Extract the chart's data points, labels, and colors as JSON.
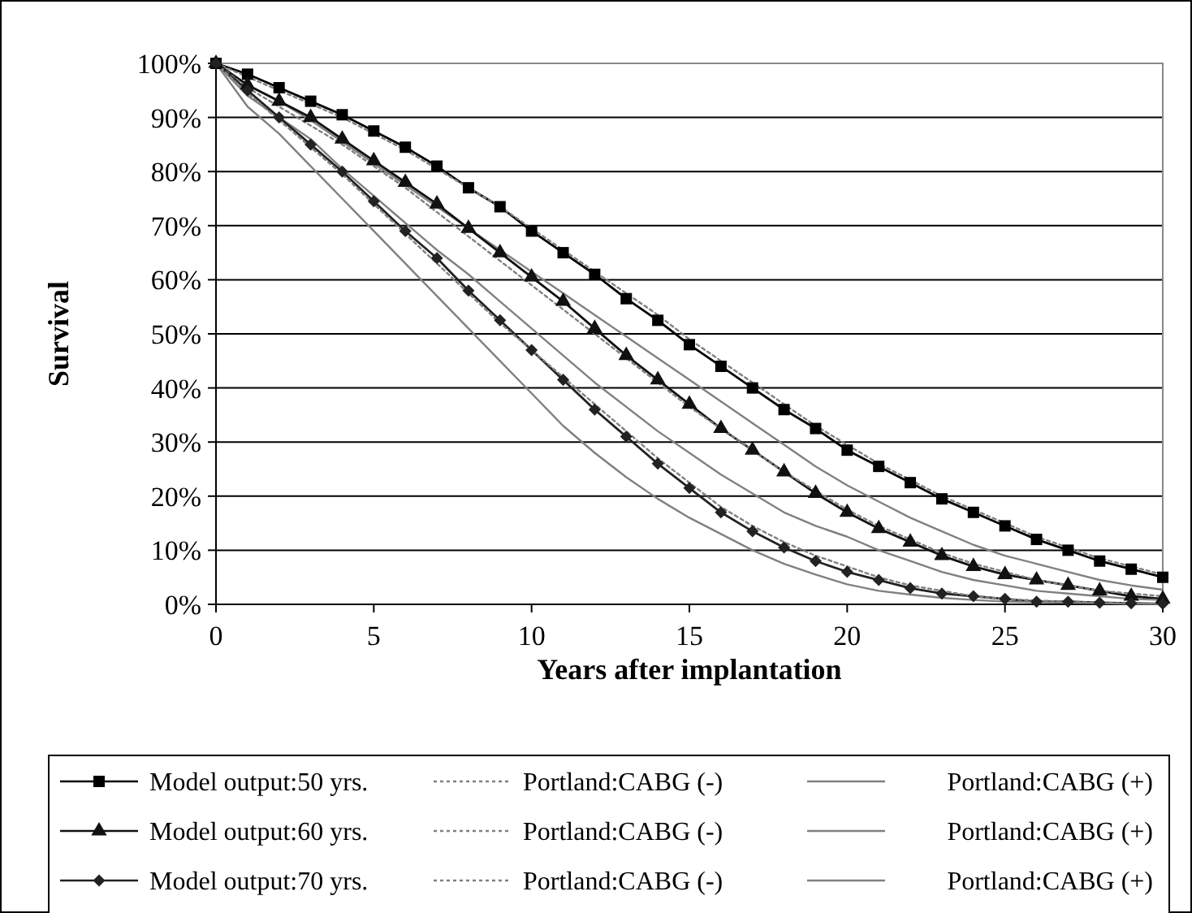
{
  "chart_data": {
    "type": "line",
    "xlabel": "Years after implantation",
    "ylabel": "Survival",
    "x": [
      0,
      1,
      2,
      3,
      4,
      5,
      6,
      7,
      8,
      9,
      10,
      11,
      12,
      13,
      14,
      15,
      16,
      17,
      18,
      19,
      20,
      21,
      22,
      23,
      24,
      25,
      26,
      27,
      28,
      29,
      30
    ],
    "xlim": [
      0,
      30
    ],
    "xticks": [
      0,
      5,
      10,
      15,
      20,
      25,
      30
    ],
    "ylim": [
      0,
      100
    ],
    "yticks": [
      {
        "value": 0,
        "label": "0%"
      },
      {
        "value": 10,
        "label": "10%"
      },
      {
        "value": 20,
        "label": "20%"
      },
      {
        "value": 30,
        "label": "30%"
      },
      {
        "value": 40,
        "label": "40%"
      },
      {
        "value": 50,
        "label": "50%"
      },
      {
        "value": 60,
        "label": "60%"
      },
      {
        "value": 70,
        "label": "70%"
      },
      {
        "value": 80,
        "label": "80%"
      },
      {
        "value": 90,
        "label": "90%"
      },
      {
        "value": 100,
        "label": "100%"
      }
    ],
    "grid": "y",
    "legend": "bottom",
    "series": [
      {
        "name": "Model output:50 yrs.",
        "color": "#000000",
        "marker": "square",
        "line_style": "solid",
        "values": [
          100,
          98,
          95.5,
          93,
          90.5,
          87.5,
          84.5,
          81,
          77,
          73.5,
          69,
          65,
          61,
          56.5,
          52.5,
          48,
          44,
          40,
          36,
          32.5,
          28.5,
          25.5,
          22.5,
          19.5,
          17,
          14.5,
          12,
          10,
          8,
          6.5,
          5
        ]
      },
      {
        "name": "Portland:CABG (-)",
        "color": "#808080",
        "marker": "none",
        "line_style": "dotted",
        "values": [
          100,
          97.5,
          95,
          92.5,
          90,
          87,
          84,
          80.5,
          77,
          73.5,
          69.5,
          65.5,
          61.5,
          57.5,
          53.5,
          49,
          45,
          41,
          37,
          33,
          29.5,
          26,
          23,
          20,
          17.5,
          15,
          12.5,
          10.5,
          8.5,
          7,
          5.5
        ]
      },
      {
        "name": "Portland:CABG (+)",
        "color": "#808080",
        "marker": "none",
        "line_style": "solid",
        "values": [
          100,
          96,
          93,
          89.5,
          85.5,
          81.5,
          77.5,
          73.5,
          69.5,
          65.5,
          61.5,
          57.5,
          53.5,
          49.5,
          45.5,
          41.5,
          37.5,
          33.5,
          29.5,
          25.5,
          22,
          19,
          16,
          13.5,
          11,
          9,
          7.5,
          6,
          4.5,
          3.5,
          2.7
        ]
      },
      {
        "name": "Model output:60 yrs.",
        "color": "#111111",
        "marker": "triangle",
        "line_style": "solid",
        "values": [
          100,
          96,
          93,
          90,
          86,
          82,
          78,
          74,
          69.5,
          65,
          60.5,
          56,
          51,
          46,
          41.5,
          37,
          32.5,
          28.5,
          24.5,
          20.5,
          17,
          14,
          11.5,
          9,
          7,
          5.5,
          4.5,
          3.5,
          2.5,
          1.5,
          1
        ]
      },
      {
        "name": "Portland:CABG (-)",
        "color": "#808080",
        "marker": "none",
        "line_style": "dotted",
        "values": [
          100,
          95.5,
          92,
          88.5,
          85,
          81,
          77,
          72.5,
          68,
          63.5,
          59,
          54.5,
          50,
          45.5,
          41,
          36.5,
          32.5,
          28.5,
          24.5,
          21,
          17.5,
          14.5,
          12,
          9.5,
          7.5,
          6,
          4.5,
          3.5,
          2.5,
          2,
          1.5
        ]
      },
      {
        "name": "Portland:CABG (+)",
        "color": "#808080",
        "marker": "none",
        "line_style": "solid",
        "values": [
          100,
          94,
          90,
          86,
          80.5,
          75.5,
          70.5,
          65.5,
          61,
          56,
          51,
          46,
          41,
          36.5,
          32,
          28,
          24,
          20.5,
          17,
          14.5,
          12.5,
          10,
          8,
          6,
          4.5,
          3.5,
          2.5,
          2,
          1.5,
          1,
          0.8
        ]
      },
      {
        "name": "Model output:70 yrs.",
        "color": "#222222",
        "marker": "diamond",
        "line_style": "solid",
        "values": [
          100,
          95,
          90,
          85,
          80,
          74.5,
          69,
          64,
          58,
          52.5,
          47,
          41.5,
          36,
          31,
          26,
          21.5,
          17,
          13.5,
          10.5,
          8,
          6,
          4.5,
          3,
          2,
          1.5,
          1,
          0.5,
          0.5,
          0.3,
          0.2,
          0.1
        ]
      },
      {
        "name": "Portland:CABG (-)",
        "color": "#808080",
        "marker": "none",
        "line_style": "dotted",
        "values": [
          100,
          94.5,
          89.5,
          84.5,
          79.5,
          74,
          68.5,
          63,
          57.5,
          52,
          47,
          42,
          37,
          32,
          27,
          22.5,
          18,
          14.5,
          11.5,
          9,
          7,
          5,
          3.5,
          2.5,
          1.5,
          1,
          0.7,
          0.5,
          0.3,
          0.2,
          0.1
        ]
      },
      {
        "name": "Portland:CABG (+)",
        "color": "#808080",
        "marker": "none",
        "line_style": "solid",
        "values": [
          100,
          92,
          87,
          81,
          75,
          69,
          63,
          57,
          51,
          45,
          39,
          33,
          28,
          23.5,
          19.5,
          16,
          13,
          10,
          7.5,
          5.5,
          3.7,
          2.5,
          1.8,
          1.2,
          0.8,
          0.5,
          0.4,
          0.3,
          0.2,
          0.1,
          0.1
        ]
      }
    ]
  }
}
